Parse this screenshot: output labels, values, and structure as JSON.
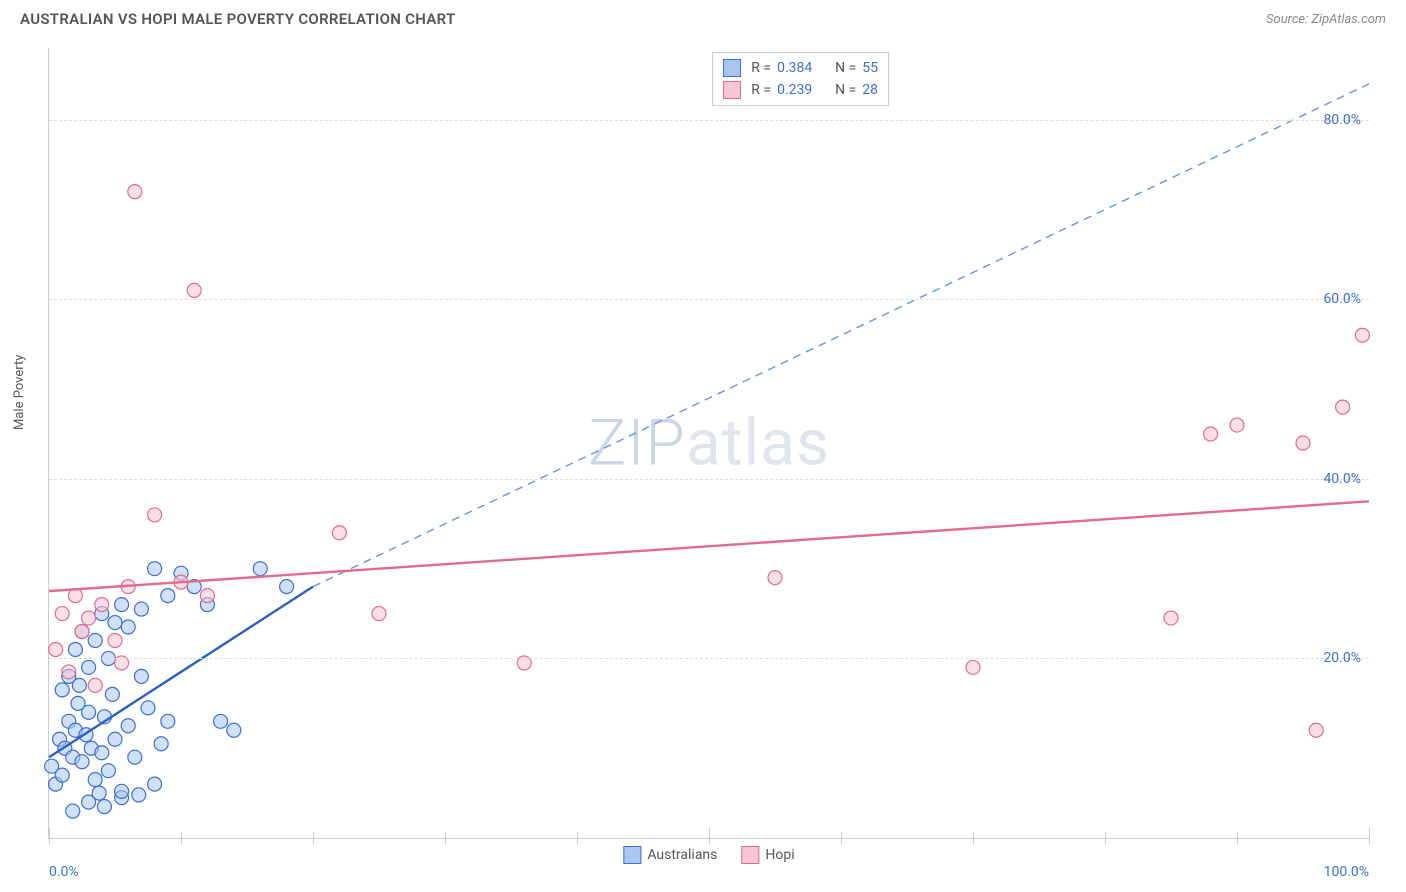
{
  "title": "AUSTRALIAN VS HOPI MALE POVERTY CORRELATION CHART",
  "source": "Source: ZipAtlas.com",
  "y_axis_label": "Male Poverty",
  "watermark": {
    "zip": "ZIP",
    "atlas": "atlas"
  },
  "chart": {
    "type": "scatter",
    "xlim": [
      0,
      100
    ],
    "ylim": [
      0,
      88
    ],
    "x_ticks_major_step": 50,
    "x_ticks_minor_step": 10,
    "y_ticks": [
      20,
      40,
      60,
      80
    ],
    "y_tick_labels": [
      "20.0%",
      "40.0%",
      "60.0%",
      "80.0%"
    ],
    "x_tick_labels": {
      "left": "0.0%",
      "right": "100.0%"
    },
    "background_color": "#ffffff",
    "grid_color": "#dddddd",
    "axis_color": "#cccccc",
    "marker_radius": 7,
    "marker_stroke_width": 1.2,
    "trend_line_width": 2.4,
    "trend_line_dash_width": 1.4,
    "series": [
      {
        "name": "Australians",
        "fill": "#a9c7ef",
        "fill_opacity": 0.55,
        "stroke": "#3b6fd4",
        "trend_color": "#2a5fc9",
        "trend_dash_color": "#6a93df",
        "r": "0.384",
        "n": "55",
        "trend_solid": {
          "x1": 0,
          "y1": 9,
          "x2": 20,
          "y2": 28
        },
        "trend_dashed": {
          "x1": 20,
          "y1": 28,
          "x2": 100,
          "y2": 84
        },
        "points": [
          [
            0.2,
            8
          ],
          [
            0.5,
            6
          ],
          [
            0.8,
            11
          ],
          [
            1.0,
            7
          ],
          [
            1.2,
            10
          ],
          [
            1.5,
            13
          ],
          [
            1.8,
            9
          ],
          [
            2.0,
            12
          ],
          [
            2.2,
            15
          ],
          [
            2.5,
            8.5
          ],
          [
            2.8,
            11.5
          ],
          [
            3.0,
            14
          ],
          [
            3.2,
            10
          ],
          [
            3.5,
            6.5
          ],
          [
            3.8,
            5
          ],
          [
            4.0,
            9.5
          ],
          [
            4.2,
            13.5
          ],
          [
            4.5,
            7.5
          ],
          [
            4.8,
            16
          ],
          [
            5.0,
            11
          ],
          [
            5.5,
            4.5
          ],
          [
            6.0,
            12.5
          ],
          [
            6.5,
            9
          ],
          [
            7.0,
            18
          ],
          [
            7.5,
            14.5
          ],
          [
            8.0,
            6
          ],
          [
            8.5,
            10.5
          ],
          [
            9.0,
            13
          ],
          [
            1.0,
            16.5
          ],
          [
            1.5,
            18
          ],
          [
            2.0,
            21
          ],
          [
            2.5,
            23
          ],
          [
            3.0,
            19
          ],
          [
            3.5,
            22
          ],
          [
            4.0,
            25
          ],
          [
            4.5,
            20
          ],
          [
            5.0,
            24
          ],
          [
            5.5,
            26
          ],
          [
            6.0,
            23.5
          ],
          [
            7.0,
            25.5
          ],
          [
            8.0,
            30
          ],
          [
            9.0,
            27
          ],
          [
            10.0,
            29.5
          ],
          [
            11.0,
            28
          ],
          [
            12.0,
            26
          ],
          [
            13.0,
            13
          ],
          [
            14.0,
            12
          ],
          [
            16.0,
            30
          ],
          [
            18.0,
            28
          ],
          [
            3.0,
            4
          ],
          [
            4.2,
            3.5
          ],
          [
            5.5,
            5.2
          ],
          [
            1.8,
            3
          ],
          [
            2.3,
            17
          ],
          [
            6.8,
            4.8
          ]
        ]
      },
      {
        "name": "Hopi",
        "fill": "#f7c5d3",
        "fill_opacity": 0.55,
        "stroke": "#e46a8b",
        "trend_color": "#e46a8b",
        "r": "0.239",
        "n": "28",
        "trend_solid": {
          "x1": 0,
          "y1": 27.5,
          "x2": 100,
          "y2": 37.5
        },
        "points": [
          [
            0.5,
            21
          ],
          [
            1.0,
            25
          ],
          [
            1.5,
            18.5
          ],
          [
            2.0,
            27
          ],
          [
            2.5,
            23
          ],
          [
            3.0,
            24.5
          ],
          [
            3.5,
            17
          ],
          [
            4.0,
            26
          ],
          [
            5.0,
            22
          ],
          [
            6.0,
            28
          ],
          [
            8.0,
            36
          ],
          [
            10.0,
            28.5
          ],
          [
            12.0,
            27
          ],
          [
            6.5,
            72
          ],
          [
            11.0,
            61
          ],
          [
            22.0,
            34
          ],
          [
            25.0,
            25
          ],
          [
            36.0,
            19.5
          ],
          [
            55.0,
            29
          ],
          [
            70.0,
            19
          ],
          [
            85.0,
            24.5
          ],
          [
            88.0,
            45
          ],
          [
            90.0,
            46
          ],
          [
            95.0,
            44
          ],
          [
            96.0,
            12
          ],
          [
            98.0,
            48
          ],
          [
            99.5,
            56
          ],
          [
            5.5,
            19.5
          ]
        ]
      }
    ]
  },
  "legend_bottom": [
    {
      "label": "Australians",
      "fill": "#a9c7ef",
      "stroke": "#3b6fd4"
    },
    {
      "label": "Hopi",
      "fill": "#f7c5d3",
      "stroke": "#e46a8b"
    }
  ]
}
